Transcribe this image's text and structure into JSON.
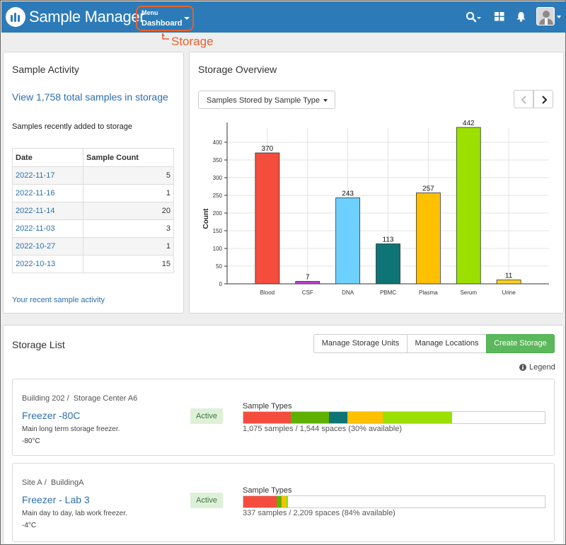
{
  "header": {
    "app_name": "Sample Manager",
    "menu_small": "Menu",
    "menu_main": "Dashboard",
    "callout": "Storage",
    "search_icon": "search-icon",
    "grid_icon": "grid-icon",
    "bell_icon": "bell-icon",
    "user_icon": "user-avatar"
  },
  "activity": {
    "title": "Sample Activity",
    "view_total": "View 1,758 total samples in storage",
    "recent_label": "Samples recently added to storage",
    "columns": [
      "Date",
      "Sample Count"
    ],
    "rows": [
      {
        "date": "2022-11-17",
        "count": "5"
      },
      {
        "date": "2022-11-16",
        "count": "1"
      },
      {
        "date": "2022-11-14",
        "count": "20"
      },
      {
        "date": "2022-11-03",
        "count": "3"
      },
      {
        "date": "2022-10-27",
        "count": "1"
      },
      {
        "date": "2022-10-13",
        "count": "15"
      }
    ],
    "recent_link": "Your recent sample activity"
  },
  "overview": {
    "title": "Storage Overview",
    "dropdown_label": "Samples Stored by Sample Type"
  },
  "chart_data": {
    "type": "bar",
    "title": "",
    "xlabel": "",
    "ylabel": "Count",
    "ylim": [
      0,
      440
    ],
    "yticks": [
      0,
      50,
      100,
      150,
      200,
      250,
      300,
      350,
      400
    ],
    "grid": true,
    "categories": [
      "Blood",
      "CSF",
      "DNA",
      "PBMC",
      "Plasma",
      "Serum",
      "Urine"
    ],
    "values": [
      370,
      7,
      243,
      113,
      257,
      442,
      11
    ],
    "colors": [
      "#f54d3d",
      "#c13fd6",
      "#6dd0ff",
      "#0e7475",
      "#ffc000",
      "#9be000",
      "#ffd21f"
    ]
  },
  "storage": {
    "title": "Storage List",
    "manage_units": "Manage Storage Units",
    "manage_locations": "Manage Locations",
    "create": "Create Storage",
    "legend": "Legend",
    "units": [
      {
        "crumb1": "Building 202",
        "crumb2": "Storage Center A6",
        "name": "Freezer -80C",
        "description": "Main long term storage freezer.",
        "temperature": "-80°C",
        "status": "Active",
        "bar_label": "Sample Types",
        "stats": "1,075 samples / 1,544 spaces (30% available)",
        "segments": [
          {
            "color": "#f54d3d",
            "fraction": 0.157
          },
          {
            "color": "#5fb100",
            "fraction": 0.128
          },
          {
            "color": "#0e7475",
            "fraction": 0.059
          },
          {
            "color": "#ffc000",
            "fraction": 0.119
          },
          {
            "color": "#9be000",
            "fraction": 0.229
          }
        ]
      },
      {
        "crumb1": "Site A",
        "crumb2": "BuildingA",
        "name": "Freezer - Lab 3",
        "description": "Main day to day, lab work freezer.",
        "temperature": "-4°C",
        "status": "Active",
        "bar_label": "Sample Types",
        "stats": "337 samples / 2,209 spaces (84% available)",
        "segments": [
          {
            "color": "#f54d3d",
            "fraction": 0.11
          },
          {
            "color": "#5fb100",
            "fraction": 0.016
          },
          {
            "color": "#ffc000",
            "fraction": 0.016
          },
          {
            "color": "#9be000",
            "fraction": 0.007
          }
        ]
      }
    ]
  }
}
